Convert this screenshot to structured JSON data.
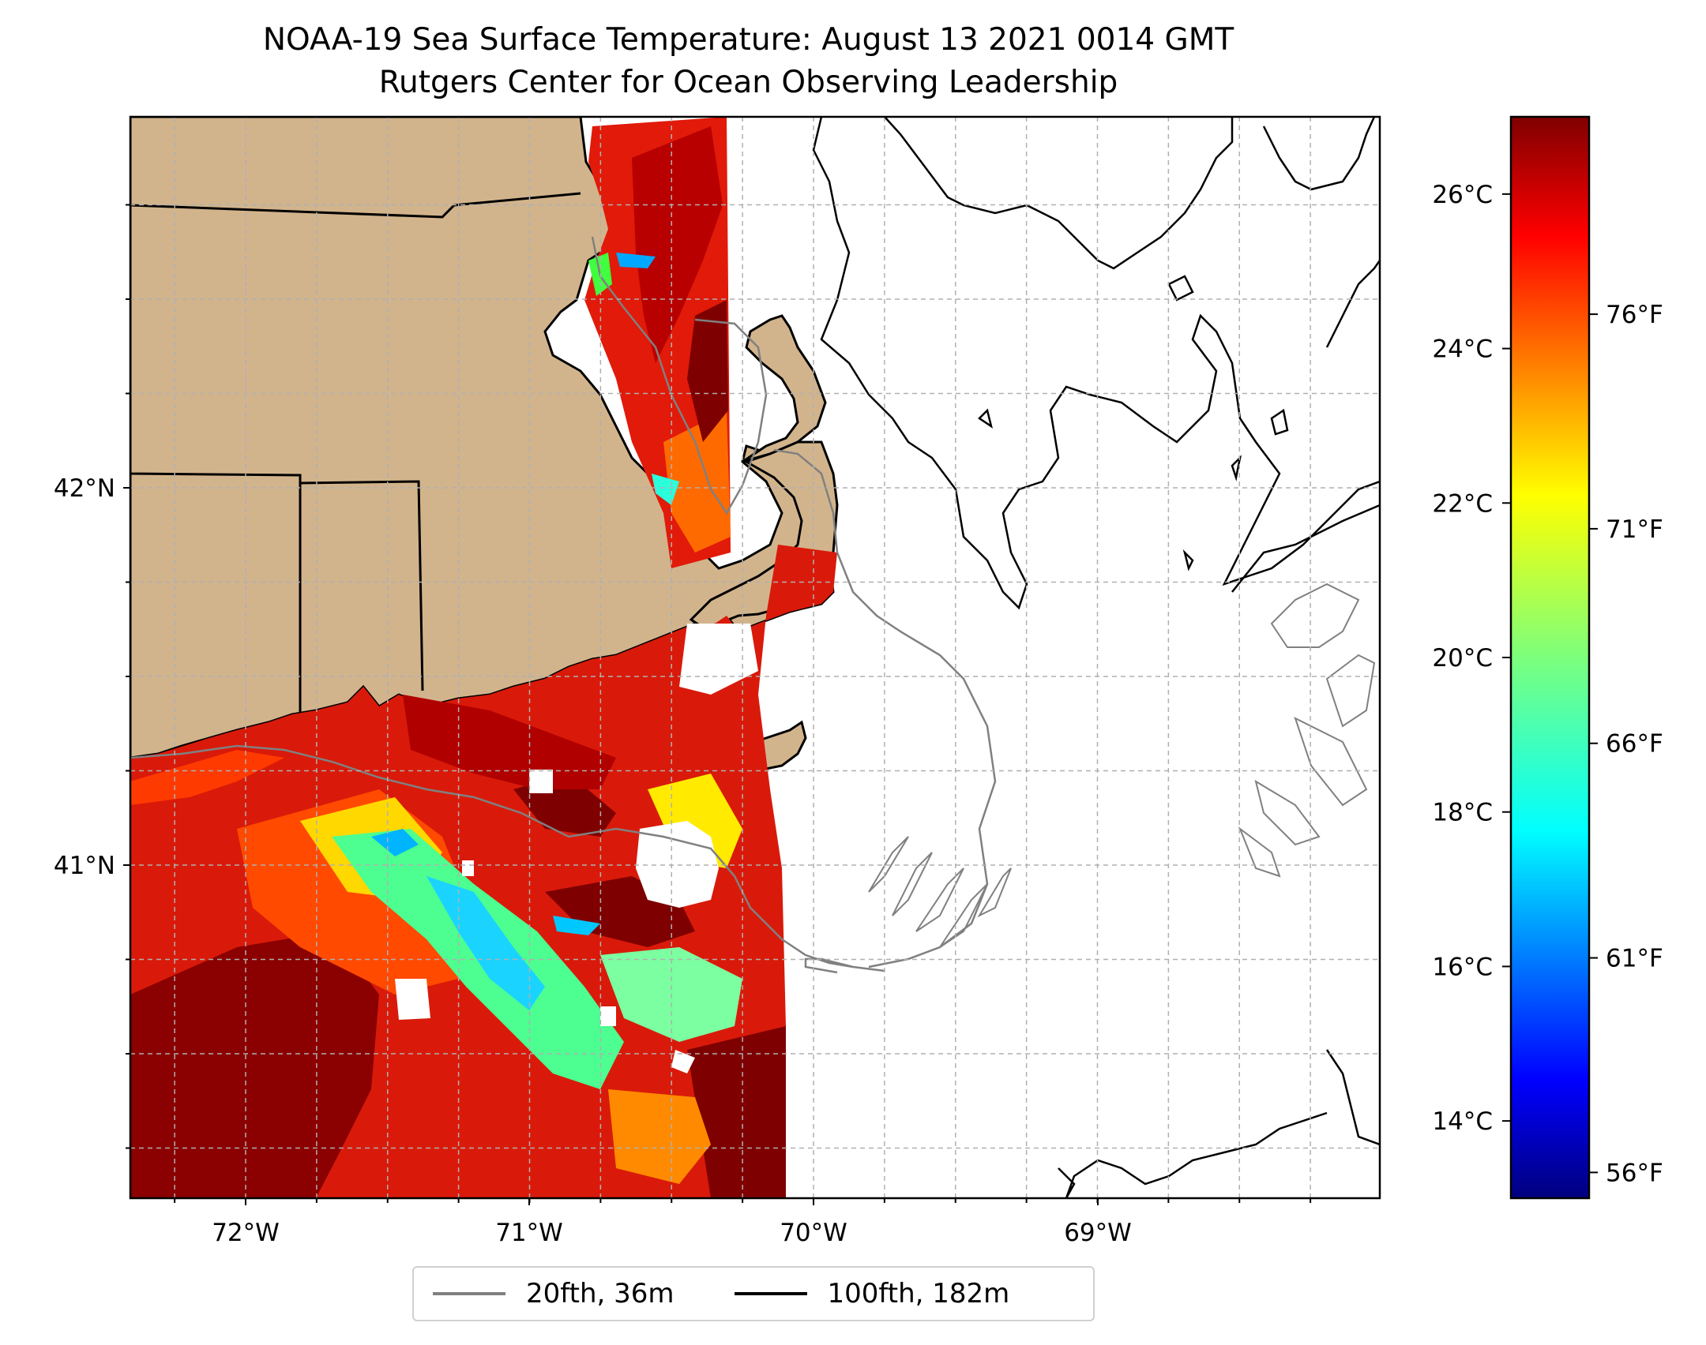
{
  "title": "NOAA-19 Sea Surface Temperature: August 13 2021 0014 GMT",
  "subtitle": "Rutgers Center for Ocean Observing Leadership",
  "map": {
    "lon_ticks": [
      {
        "value": -72,
        "label": "72°W"
      },
      {
        "value": -71,
        "label": "71°W"
      },
      {
        "value": -70,
        "label": "70°W"
      },
      {
        "value": -69,
        "label": "69°W"
      }
    ],
    "lat_ticks": [
      {
        "value": 42,
        "label": "42°N"
      },
      {
        "value": 41,
        "label": "41°N"
      }
    ],
    "extent": {
      "lon": [
        -72.4,
        -68.0
      ],
      "lat": [
        40.15,
        43.0
      ]
    },
    "grid": true,
    "colors": {
      "land": "#d2b48c",
      "contour_20fth": "#808080",
      "contour_100fth": "#000000"
    }
  },
  "colorbar": {
    "colormap": "jet",
    "celsius_ticks": [
      {
        "value": 14,
        "label": "14°C"
      },
      {
        "value": 16,
        "label": "16°C"
      },
      {
        "value": 18,
        "label": "18°C"
      },
      {
        "value": 20,
        "label": "20°C"
      },
      {
        "value": 22,
        "label": "22°C"
      },
      {
        "value": 24,
        "label": "24°C"
      },
      {
        "value": 26,
        "label": "26°C"
      }
    ],
    "fahrenheit_ticks": [
      {
        "value": 56,
        "label": "56°F"
      },
      {
        "value": 61,
        "label": "61°F"
      },
      {
        "value": 66,
        "label": "66°F"
      },
      {
        "value": 71,
        "label": "71°F"
      },
      {
        "value": 76,
        "label": "76°F"
      }
    ],
    "range_c": [
      13.0,
      27.0
    ]
  },
  "legend": [
    {
      "label": "20fth, 36m",
      "color": "#808080"
    },
    {
      "label": "100fth, 182m",
      "color": "#000000"
    }
  ]
}
